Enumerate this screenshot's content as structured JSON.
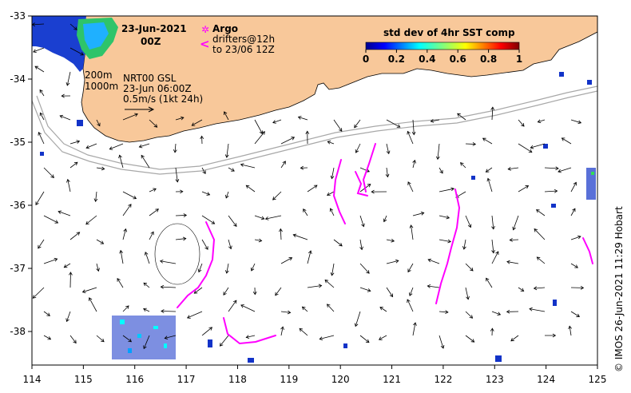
{
  "title": {
    "date": "23-Jun-2021",
    "hour": "00Z"
  },
  "legend": {
    "argo_label": "Argo",
    "argo_symbol": "✲",
    "drifter_symbol": "<",
    "drifter_label_1": "drifters@12h",
    "drifter_label_2": "to 23/06 12Z"
  },
  "colorbar": {
    "title": "std dev of 4hr SST comp",
    "ticks": [
      "0",
      "0.2",
      "0.4",
      "0.6",
      "0.8",
      "1"
    ]
  },
  "annotations": {
    "isobath_1": "200m",
    "isobath_2": "1000m",
    "product": "NRT00 GSL",
    "analysis_time": "23-Jun 06:00Z",
    "scale": "0.5m/s (1kt 24h)"
  },
  "credit": "© IMOS 26-Jun-2021 11:29 Hobart",
  "axes": {
    "x_ticks": [
      "114",
      "115",
      "116",
      "117",
      "118",
      "119",
      "120",
      "121",
      "122",
      "123",
      "124",
      "125"
    ],
    "y_ticks": [
      "-33",
      "-34",
      "-35",
      "-36",
      "-37",
      "-38"
    ]
  },
  "colors": {
    "land": "#f8c89a",
    "argo": "#ff00ff",
    "drifter": "#ff00ff",
    "isobath": "#a8a8a8",
    "sst_low": "#000080",
    "sst_mid": "#00a0ff"
  }
}
